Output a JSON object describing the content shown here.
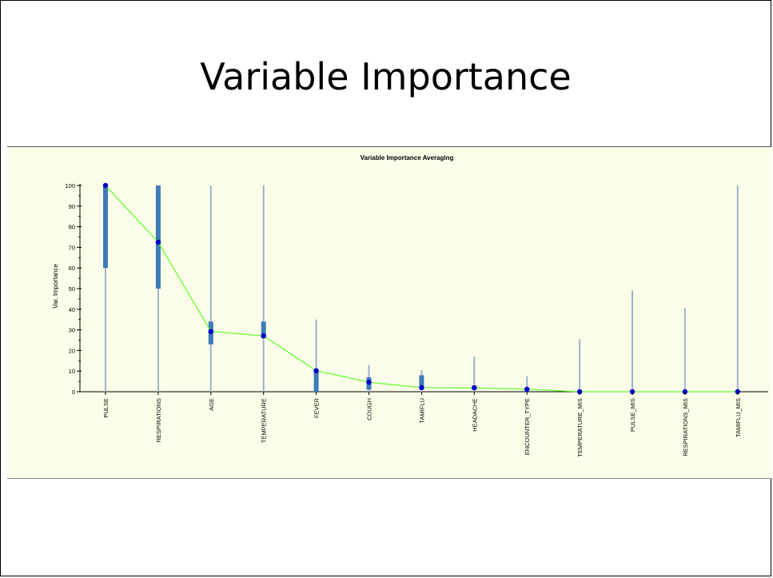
{
  "slide": {
    "title": "Variable Importance"
  },
  "colors": {
    "panel_background": "#fcfde8",
    "range_line": "#9ab3cf",
    "iqr_box": "#3d7ab8",
    "mean_line": "#66ff33",
    "mean_point": "#0000cc"
  },
  "chart_data": {
    "type": "box",
    "title": "Variable Importance Averaging",
    "xlabel": "",
    "ylabel": "Var. Importance",
    "ylim": [
      0,
      100
    ],
    "yticks": [
      0,
      10,
      20,
      30,
      40,
      50,
      60,
      70,
      80,
      90,
      100
    ],
    "grid": false,
    "categories": [
      "PULSE",
      "RESPIRATIONS",
      "AGE",
      "TEMPERATURE",
      "FEVER",
      "COUGH",
      "TAMIFLU",
      "HEADACHE",
      "ENCOUNTER_TYPE",
      "TEMPERATURE_MIS",
      "PULSE_MIS",
      "RESPIRATIONS_MIS",
      "TAMIFLU_MIS"
    ],
    "series": [
      {
        "name": "mean",
        "values": [
          100,
          72.5,
          29.2,
          27.1,
          10.2,
          4.6,
          2.0,
          1.9,
          1.2,
          0,
          0,
          0,
          0
        ]
      },
      {
        "name": "min",
        "values": [
          0,
          0,
          0,
          0,
          0,
          0,
          0,
          0,
          0,
          0,
          0,
          0,
          0
        ]
      },
      {
        "name": "max",
        "values": [
          100,
          100,
          100,
          100,
          35,
          13,
          10.5,
          17,
          7.5,
          25.5,
          49,
          40.5,
          100
        ]
      },
      {
        "name": "q1",
        "values": [
          60,
          50,
          23,
          26,
          0,
          1,
          1,
          1,
          0,
          0,
          0,
          0,
          0
        ]
      },
      {
        "name": "q3",
        "values": [
          100,
          100,
          34,
          34,
          10,
          7,
          8,
          3,
          1,
          0,
          0,
          0,
          0
        ]
      }
    ]
  }
}
